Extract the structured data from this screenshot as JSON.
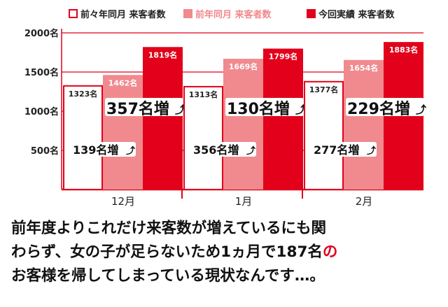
{
  "legend": [
    {
      "label": "前々年同月 来客者数",
      "color": "#ffffff",
      "border": "#e2001a",
      "text": "#222222"
    },
    {
      "label": "前年同月 来客者数",
      "color": "#f08a8e",
      "border": "#f08a8e",
      "text": "#f08a8e"
    },
    {
      "label": "今回実績 来客者数",
      "color": "#e2001a",
      "border": "#e2001a",
      "text": "#222222"
    }
  ],
  "chart_data": {
    "type": "bar",
    "categories": [
      "12月",
      "1月",
      "2月"
    ],
    "series": [
      {
        "name": "前々年同月 来客者数",
        "values": [
          1323,
          1313,
          1377
        ],
        "labels": [
          "1323名",
          "1313名",
          "1377名"
        ]
      },
      {
        "name": "前年同月 来客者数",
        "values": [
          1462,
          1669,
          1654
        ],
        "labels": [
          "1462名",
          "1669名",
          "1654名"
        ]
      },
      {
        "name": "今回実績 来客者数",
        "values": [
          1819,
          1799,
          1883
        ],
        "labels": [
          "1819名",
          "1799名",
          "1883名"
        ]
      }
    ],
    "yticks": [
      "500名",
      "1000名",
      "1500名",
      "2000名"
    ],
    "ytick_values": [
      500,
      1000,
      1500,
      2000
    ],
    "ylim": [
      0,
      2000
    ],
    "increase_small": [
      "139名増",
      "356名増",
      "277名増"
    ],
    "increase_large": [
      "357名増",
      "130名増",
      "229名増"
    ],
    "colors": {
      "axis": "#e2001a",
      "series0_fill": "#ffffff",
      "series1_fill": "#f08a8e",
      "series2_fill": "#e2001a"
    },
    "grid": false,
    "legend_position": "top"
  },
  "caption": {
    "line1": "前年度よりこれだけ来客数が増えているにも関",
    "line2_a": "わらず、女の子が足らないため",
    "line2_b": "1ヵ月で187名",
    "line2_c": "の",
    "line3": "お客様を帰してしまっている現状なんです…。"
  }
}
